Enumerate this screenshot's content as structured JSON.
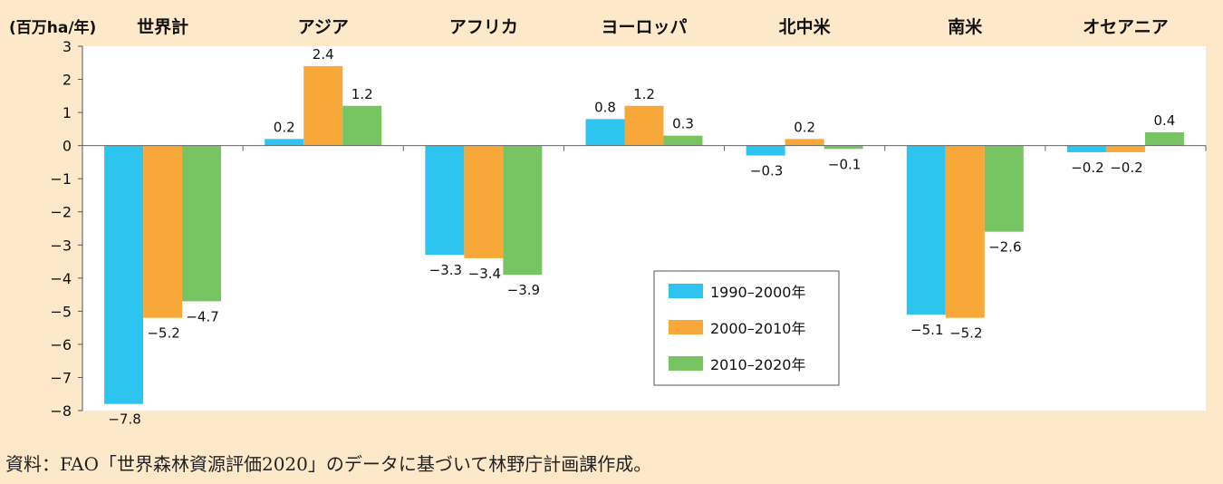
{
  "chart_data": {
    "type": "bar",
    "unit_label": "(百万ha/年)",
    "categories": [
      "世界計",
      "アジア",
      "アフリカ",
      "ヨーロッパ",
      "北中米",
      "南米",
      "オセアニア"
    ],
    "series": [
      {
        "name": "1990–2000年",
        "color": "#2ec4f0",
        "values": [
          -7.8,
          0.2,
          -3.3,
          0.8,
          -0.3,
          -5.1,
          -0.2
        ]
      },
      {
        "name": "2000–2010年",
        "color": "#f7a839",
        "values": [
          -5.2,
          2.4,
          -3.4,
          1.2,
          0.2,
          -5.2,
          -0.2
        ]
      },
      {
        "name": "2010–2020年",
        "color": "#76c462",
        "values": [
          -4.7,
          1.2,
          -3.9,
          0.3,
          -0.1,
          -2.6,
          0.4
        ]
      }
    ],
    "data_labels": [
      [
        "−7.8",
        "0.2",
        "−3.3",
        "0.8",
        "−0.3",
        "−5.1",
        "−0.2"
      ],
      [
        "−5.2",
        "2.4",
        "−3.4",
        "1.2",
        "0.2",
        "−5.2",
        "−0.2"
      ],
      [
        "−4.7",
        "1.2",
        "−3.9",
        "0.3",
        "−0.1",
        "−2.6",
        "0.4"
      ]
    ],
    "ylim": [
      -8,
      3
    ],
    "yticks": [
      3,
      2,
      1,
      0,
      -1,
      -2,
      -3,
      -4,
      -5,
      -6,
      -7,
      -8
    ],
    "ytick_labels": [
      "3",
      "2",
      "1",
      "0",
      "−1",
      "−2",
      "−3",
      "−4",
      "−5",
      "−6",
      "−7",
      "−8"
    ],
    "legend_position": "center",
    "grid": false
  },
  "source_note": "資料：FAO「世界森林資源評価2020」のデータに基づいて林野庁計画課作成。"
}
